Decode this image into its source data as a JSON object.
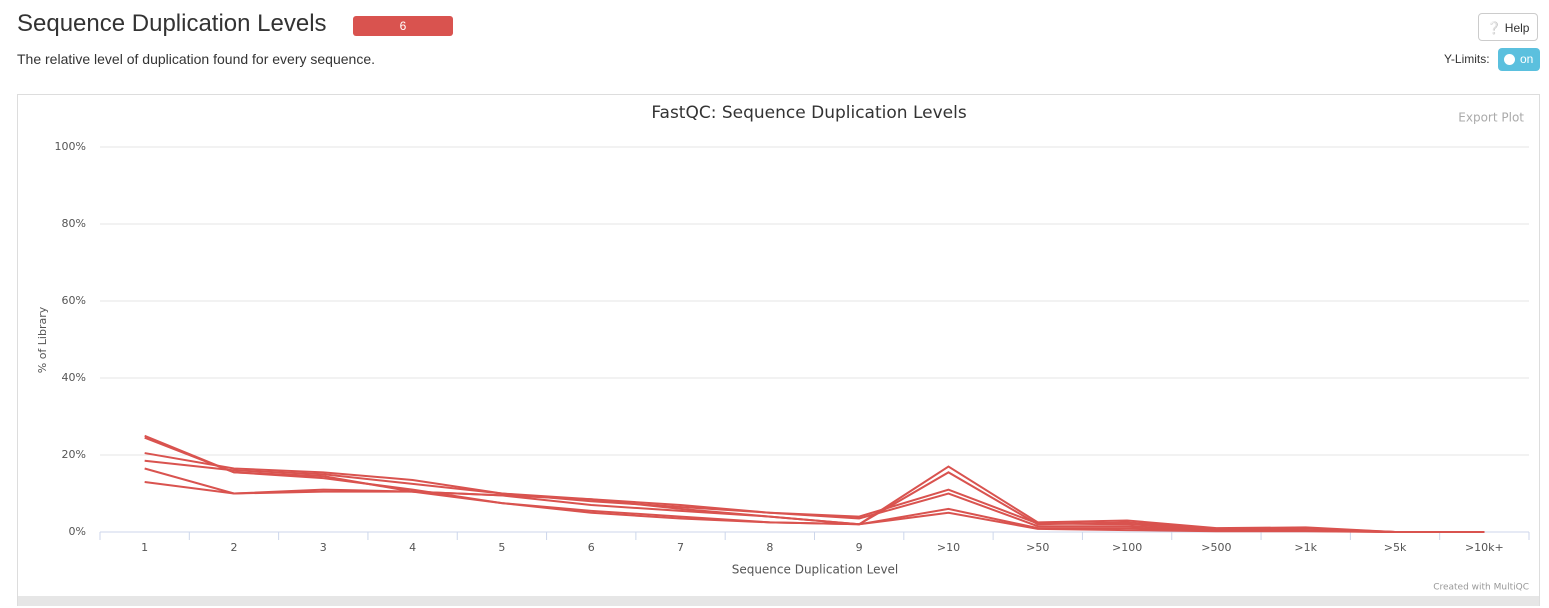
{
  "header": {
    "title": "Sequence Duplication Levels",
    "badge": "6",
    "description": "The relative level of duplication found for every sequence.",
    "help": "Help",
    "ylimits_label": "Y-Limits:",
    "ylimits_toggle": "on"
  },
  "chart_data": {
    "type": "line",
    "title": "FastQC: Sequence Duplication Levels",
    "export": "Export Plot",
    "credit": "Created with MultiQC",
    "x_label": "Sequence Duplication Level",
    "y_label": "% of Library",
    "categories": [
      "1",
      "2",
      "3",
      "4",
      "5",
      "6",
      "7",
      "8",
      "9",
      ">10",
      ">50",
      ">100",
      ">500",
      ">1k",
      ">5k",
      ">10k+"
    ],
    "ylim": [
      0,
      100
    ],
    "yticks": [
      {
        "value": 0,
        "label": "0%"
      },
      {
        "value": 20,
        "label": "20%"
      },
      {
        "value": 40,
        "label": "40%"
      },
      {
        "value": 60,
        "label": "60%"
      },
      {
        "value": 80,
        "label": "80%"
      },
      {
        "value": 100,
        "label": "100%"
      }
    ],
    "grid": true,
    "series": [
      {
        "color": "#d9534f",
        "values": [
          25,
          15.5,
          14,
          11,
          7.5,
          5,
          3.5,
          2.5,
          2,
          17,
          2.5,
          3,
          1,
          1.2,
          0,
          0
        ]
      },
      {
        "color": "#d9534f",
        "values": [
          24.5,
          15.5,
          14.5,
          10.5,
          7.5,
          5.5,
          4,
          2.5,
          2,
          15.5,
          2,
          2.5,
          0.8,
          1,
          0,
          0
        ]
      },
      {
        "color": "#d9534f",
        "values": [
          20.5,
          16.5,
          15.5,
          13.5,
          10,
          8.5,
          7,
          5,
          4,
          11,
          2.2,
          2,
          0.8,
          0.5,
          0,
          0
        ]
      },
      {
        "color": "#d9534f",
        "values": [
          18.5,
          16,
          15,
          12.5,
          10,
          8,
          6.5,
          5,
          3.5,
          10,
          1.5,
          1.5,
          0.5,
          0.5,
          0,
          0
        ]
      },
      {
        "color": "#d9534f",
        "values": [
          16.5,
          10,
          11,
          10.5,
          9.5,
          8.5,
          6,
          4,
          2,
          6,
          1,
          1,
          0.3,
          0.3,
          0,
          0
        ]
      },
      {
        "color": "#d9534f",
        "values": [
          13,
          10,
          10.5,
          10.5,
          9.5,
          7,
          5.5,
          4,
          2,
          5,
          0.8,
          0.5,
          0.2,
          0.2,
          0,
          0
        ]
      }
    ]
  }
}
